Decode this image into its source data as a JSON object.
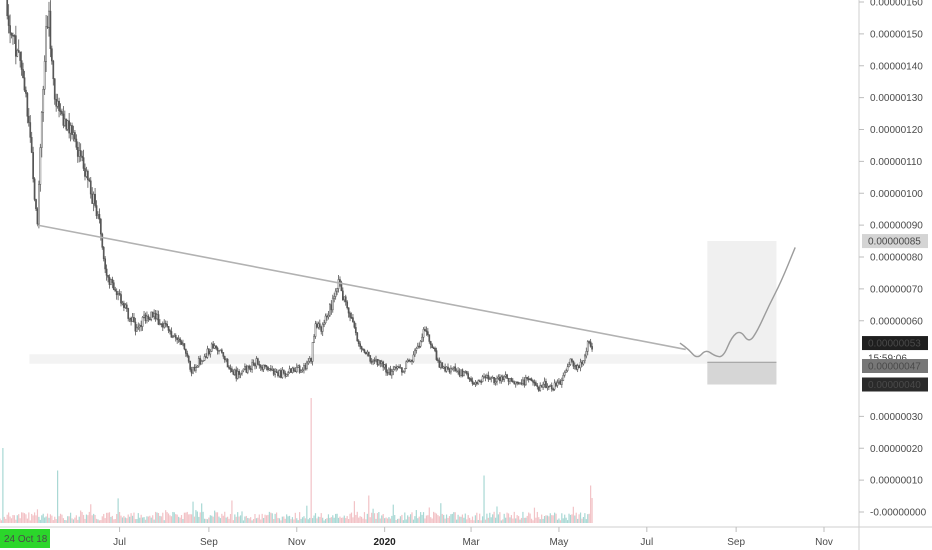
{
  "chart_data": {
    "type": "candlestick",
    "y_ticks": [
      "0.00000160",
      "0.00000150",
      "0.00000140",
      "0.00000130",
      "0.00000120",
      "0.00000110",
      "0.00000100",
      "0.00000090",
      "0.00000080",
      "0.00000070",
      "0.00000060",
      "0.00000030",
      "0.00000020",
      "0.00000010",
      "-0.00000000"
    ],
    "y_tick_values": [
      160,
      150,
      140,
      130,
      120,
      110,
      100,
      90,
      80,
      70,
      60,
      30,
      20,
      10,
      0
    ],
    "x_ticks": [
      "Jul",
      "Sep",
      "Nov",
      "2020",
      "Mar",
      "May",
      "Jul",
      "Sep",
      "Nov"
    ],
    "x_tick_days": [
      247,
      309,
      370,
      431,
      491,
      552,
      613,
      675,
      736
    ],
    "start_date_label": "24 Oct 18",
    "price_labels": {
      "price_85": "0.00000085",
      "price_53": "0.00000053",
      "countdown": "15:59:06",
      "price_47": "0.00000047",
      "price_40": "0.00000040"
    },
    "colors": {
      "candle": "#555555",
      "trendline": "#b2b2b2",
      "support_zone": "#f3f3f3",
      "target_zone": "#f0f0f0",
      "stop_zone": "#d6d6d6",
      "volume_up": "#a8d8d4",
      "volume_down": "#f2c2c6",
      "date_badge": "#2bd62b",
      "price_53_label": "#1f1f1f",
      "price_85_label": "#d4d4d4",
      "price_47_label": "#777777",
      "price_40_label": "#2a2a2a"
    },
    "trendline": [
      {
        "day": 190,
        "price": 90
      },
      {
        "day": 640,
        "price": 51
      }
    ],
    "support_zone": {
      "day_start": 190,
      "day_end": 702,
      "price_low": 46.5,
      "price_high": 49.5
    },
    "target_box": {
      "day_start": 655,
      "day_end": 703,
      "price_low": 47,
      "price_high": 85
    },
    "stop_box": {
      "day_start": 655,
      "day_end": 703,
      "price_low": 40,
      "price_high": 47
    },
    "projected_path": [
      {
        "day": 636,
        "price": 53
      },
      {
        "day": 642,
        "price": 51
      },
      {
        "day": 648,
        "price": 48
      },
      {
        "day": 654,
        "price": 51
      },
      {
        "day": 660,
        "price": 49
      },
      {
        "day": 666,
        "price": 48.5
      },
      {
        "day": 672,
        "price": 55
      },
      {
        "day": 678,
        "price": 57
      },
      {
        "day": 684,
        "price": 53
      },
      {
        "day": 690,
        "price": 57
      },
      {
        "day": 698,
        "price": 65
      },
      {
        "day": 706,
        "price": 72
      },
      {
        "day": 716,
        "price": 83
      }
    ],
    "price_path": [
      [
        164,
        170
      ],
      [
        170,
        155
      ],
      [
        175,
        146
      ],
      [
        180,
        135
      ],
      [
        185,
        120
      ],
      [
        188,
        98
      ],
      [
        190,
        90
      ],
      [
        193,
        125
      ],
      [
        196,
        150
      ],
      [
        198,
        157
      ],
      [
        201,
        133
      ],
      [
        205,
        125
      ],
      [
        210,
        122
      ],
      [
        215,
        118
      ],
      [
        220,
        112
      ],
      [
        225,
        103
      ],
      [
        230,
        96
      ],
      [
        234,
        88
      ],
      [
        237,
        77
      ],
      [
        240,
        72
      ],
      [
        243,
        70
      ],
      [
        247,
        67
      ],
      [
        252,
        63
      ],
      [
        258,
        58
      ],
      [
        263,
        60
      ],
      [
        270,
        62
      ],
      [
        278,
        58
      ],
      [
        285,
        55
      ],
      [
        292,
        52
      ],
      [
        297,
        44
      ],
      [
        302,
        47
      ],
      [
        308,
        50
      ],
      [
        313,
        53
      ],
      [
        318,
        49
      ],
      [
        322,
        46
      ],
      [
        328,
        43
      ],
      [
        335,
        45
      ],
      [
        342,
        47
      ],
      [
        350,
        44
      ],
      [
        357,
        43
      ],
      [
        364,
        44
      ],
      [
        370,
        45
      ],
      [
        376,
        45
      ],
      [
        380,
        48
      ],
      [
        383,
        60
      ],
      [
        387,
        57
      ],
      [
        391,
        61
      ],
      [
        395,
        66
      ],
      [
        399,
        73
      ],
      [
        403,
        66
      ],
      [
        407,
        62
      ],
      [
        410,
        57
      ],
      [
        414,
        52
      ],
      [
        419,
        49
      ],
      [
        424,
        47
      ],
      [
        429,
        46
      ],
      [
        434,
        44
      ],
      [
        439,
        45
      ],
      [
        444,
        45
      ],
      [
        450,
        48
      ],
      [
        455,
        52
      ],
      [
        458,
        58
      ],
      [
        461,
        56
      ],
      [
        465,
        51
      ],
      [
        469,
        46
      ],
      [
        475,
        45
      ],
      [
        481,
        44
      ],
      [
        487,
        43
      ],
      [
        491,
        41
      ],
      [
        497,
        41
      ],
      [
        503,
        42
      ],
      [
        509,
        41
      ],
      [
        515,
        42
      ],
      [
        521,
        41
      ],
      [
        527,
        41
      ],
      [
        532,
        41
      ],
      [
        538,
        39
      ],
      [
        543,
        40
      ],
      [
        547,
        39
      ],
      [
        551,
        40
      ],
      [
        555,
        42
      ],
      [
        558,
        46
      ],
      [
        561,
        48
      ],
      [
        564,
        44
      ],
      [
        567,
        46
      ],
      [
        570,
        49
      ],
      [
        572,
        54
      ],
      [
        574,
        52
      ]
    ],
    "volume_spikes": [
      [
        380,
        100
      ],
      [
        166,
        60
      ],
      [
        204,
        42
      ],
      [
        500,
        38
      ],
      [
        574,
        30
      ],
      [
        575,
        20
      ],
      [
        227,
        15
      ],
      [
        325,
        18
      ],
      [
        420,
        22
      ]
    ]
  }
}
